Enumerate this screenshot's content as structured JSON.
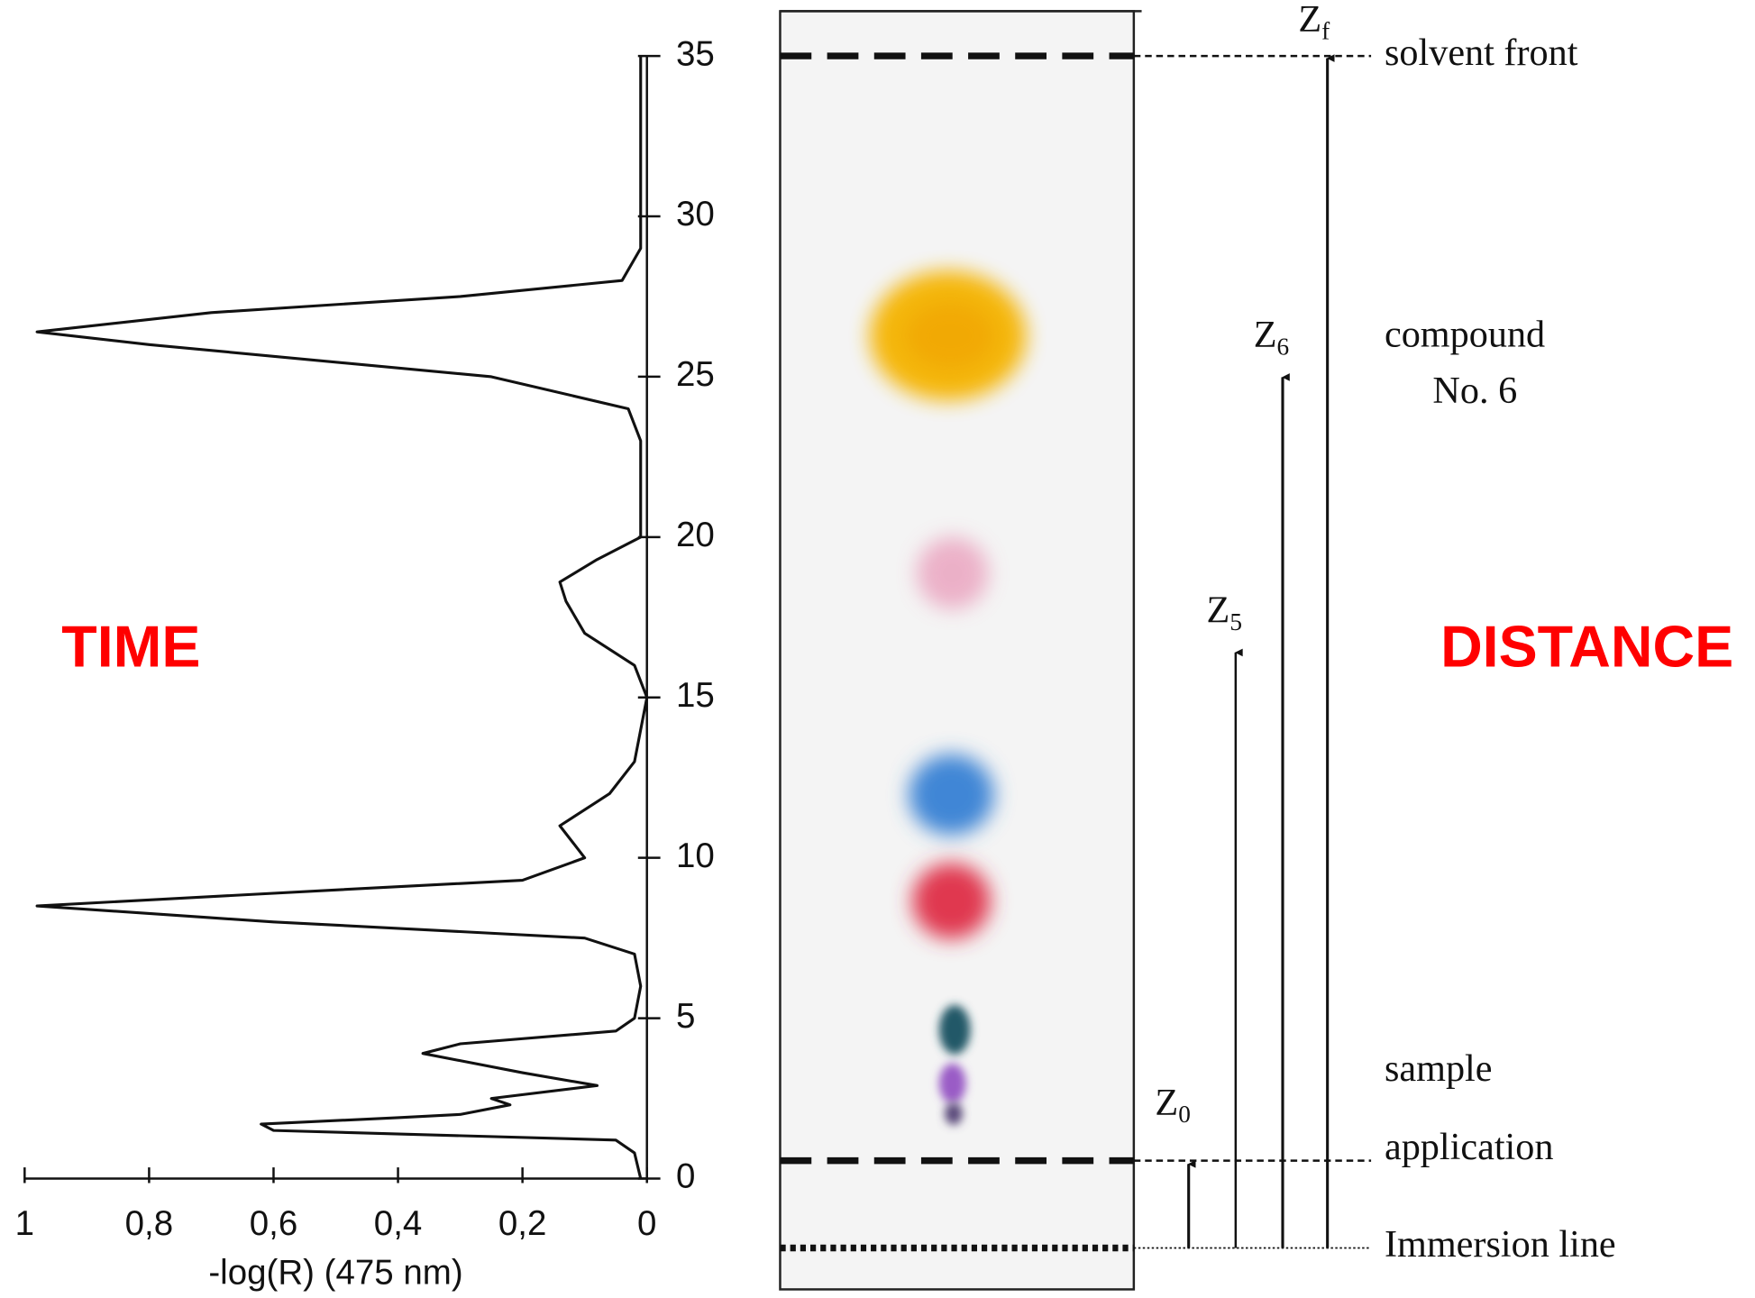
{
  "chart_data": {
    "type": "line",
    "orientation": "vertical",
    "xlabel": "-log(R) (475 nm)",
    "xlim": [
      1,
      0
    ],
    "xticks": [
      1,
      {
        "value": 0.8,
        "label": "0,8"
      },
      {
        "value": 0.6,
        "label": "0,6"
      },
      {
        "value": 0.4,
        "label": "0,4"
      },
      {
        "value": 0.2,
        "label": "0,2"
      },
      0
    ],
    "ylim": [
      0,
      35
    ],
    "yticks": [
      0,
      5,
      10,
      15,
      20,
      25,
      30,
      35
    ],
    "color": "#111111",
    "x": [
      0,
      0.8,
      1.2,
      1.5,
      1.7,
      1.9,
      2.0,
      2.3,
      2.5,
      2.9,
      3.3,
      3.9,
      4.2,
      4.6,
      5,
      6,
      7,
      7.5,
      8.0,
      8.5,
      9.0,
      9.3,
      10,
      10.5,
      11,
      12,
      13,
      15,
      16,
      17,
      18,
      18.6,
      19.3,
      20,
      23,
      24,
      25,
      26,
      26.4,
      27,
      27.5,
      28,
      29,
      32,
      35
    ],
    "values": [
      0.01,
      0.02,
      0.05,
      0.6,
      0.62,
      0.4,
      0.3,
      0.22,
      0.25,
      0.08,
      0.2,
      0.36,
      0.3,
      0.05,
      0.02,
      0.01,
      0.02,
      0.1,
      0.6,
      0.98,
      0.5,
      0.2,
      0.1,
      0.12,
      0.14,
      0.06,
      0.02,
      0.0,
      0.02,
      0.1,
      0.13,
      0.14,
      0.08,
      0.01,
      0.01,
      0.03,
      0.25,
      0.8,
      0.98,
      0.7,
      0.3,
      0.04,
      0.01,
      0.01,
      0.01
    ],
    "annotations": [
      {
        "text": "TIME"
      },
      {
        "text": "DISTANCE"
      },
      {
        "text": "solvent front"
      },
      {
        "text": "compound"
      },
      {
        "text": "No. 6"
      },
      {
        "text": "sample"
      },
      {
        "text": "application"
      },
      {
        "text": "Immersion line"
      }
    ],
    "distance_markers": [
      {
        "main": "Z",
        "sub": "f"
      },
      {
        "main": "Z",
        "sub": "6"
      },
      {
        "main": "Z",
        "sub": "5"
      },
      {
        "main": "Z",
        "sub": "0"
      }
    ]
  }
}
